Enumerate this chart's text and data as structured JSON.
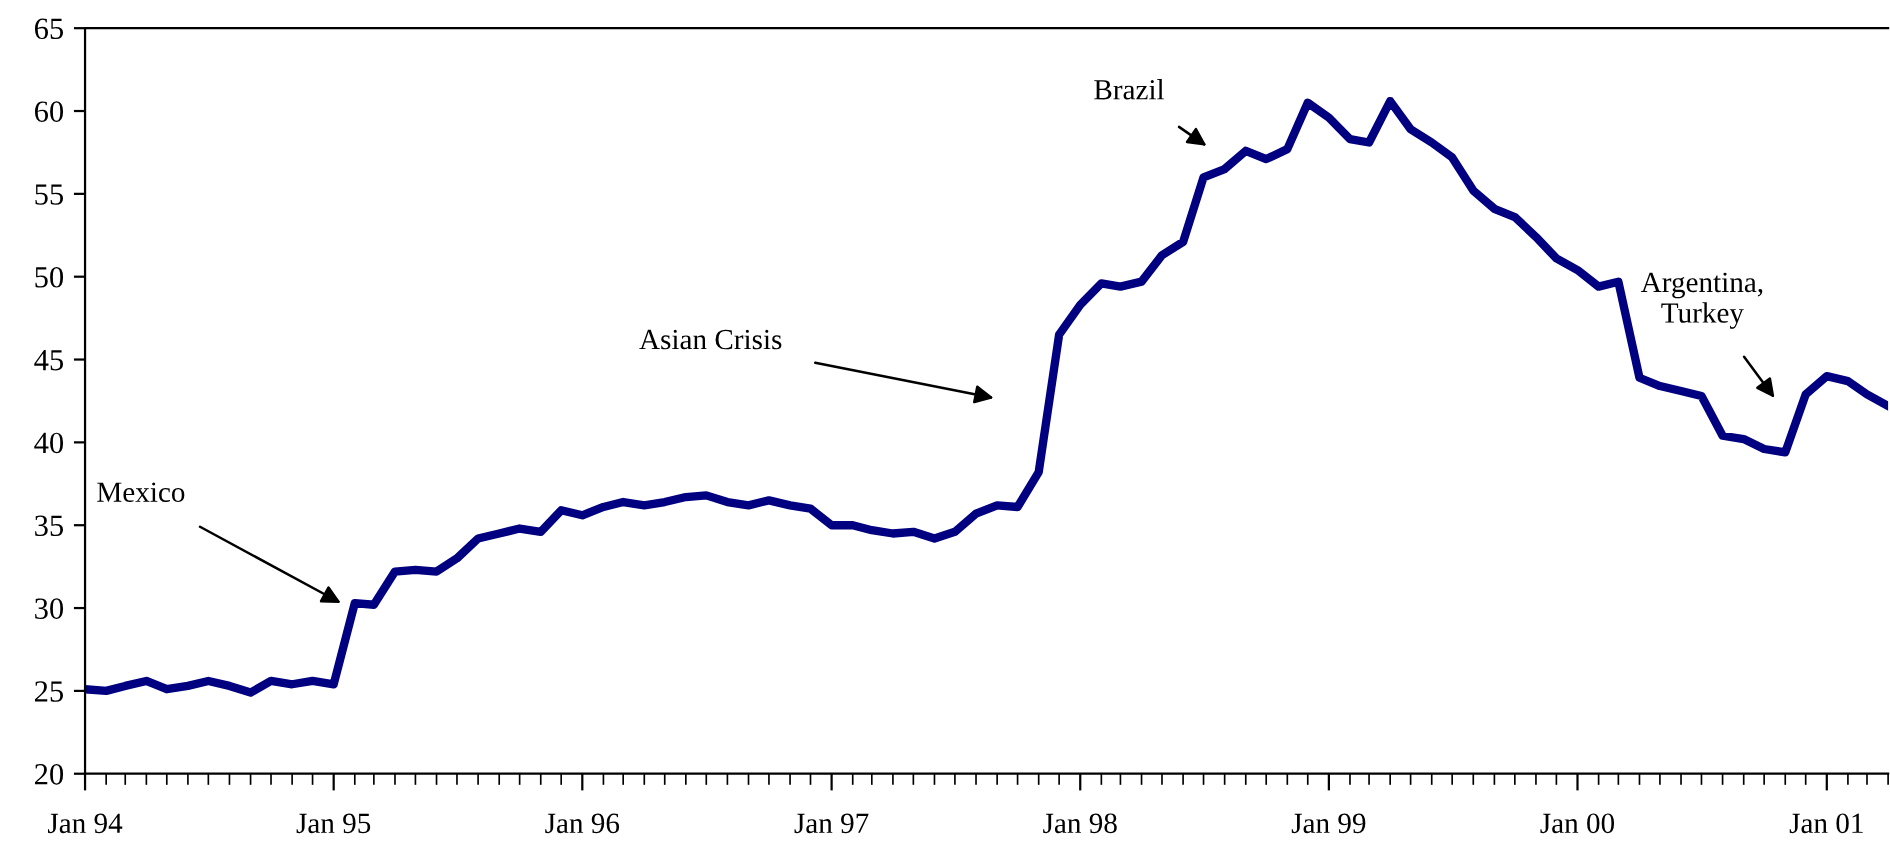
{
  "chart_data": {
    "type": "line",
    "x": [
      "1994-01",
      "1994-02",
      "1994-03",
      "1994-04",
      "1994-05",
      "1994-06",
      "1994-07",
      "1994-08",
      "1994-09",
      "1994-10",
      "1994-11",
      "1994-12",
      "1995-01",
      "1995-02",
      "1995-03",
      "1995-04",
      "1995-05",
      "1995-06",
      "1995-07",
      "1995-08",
      "1995-09",
      "1995-10",
      "1995-11",
      "1995-12",
      "1996-01",
      "1996-02",
      "1996-03",
      "1996-04",
      "1996-05",
      "1996-06",
      "1996-07",
      "1996-08",
      "1996-09",
      "1996-10",
      "1996-11",
      "1996-12",
      "1997-01",
      "1997-02",
      "1997-03",
      "1997-04",
      "1997-05",
      "1997-06",
      "1997-07",
      "1997-08",
      "1997-09",
      "1997-10",
      "1997-11",
      "1997-12",
      "1998-01",
      "1998-02",
      "1998-03",
      "1998-04",
      "1998-05",
      "1998-06",
      "1998-07",
      "1998-08",
      "1998-09",
      "1998-10",
      "1998-11",
      "1998-12",
      "1999-01",
      "1999-02",
      "1999-03",
      "1999-04",
      "1999-05",
      "1999-06",
      "1999-07",
      "1999-08",
      "1999-09",
      "1999-10",
      "1999-11",
      "1999-12",
      "2000-01",
      "2000-02",
      "2000-03",
      "2000-04",
      "2000-05",
      "2000-06",
      "2000-07",
      "2000-08",
      "2000-09",
      "2000-10",
      "2000-11",
      "2000-12",
      "2001-01",
      "2001-02",
      "2001-03",
      "2001-04"
    ],
    "series": [
      {
        "color": "#000080",
        "values": [
          25.1,
          25.0,
          25.3,
          25.6,
          25.1,
          25.3,
          25.6,
          25.3,
          24.9,
          25.6,
          25.4,
          25.6,
          25.4,
          30.3,
          30.2,
          32.2,
          32.3,
          32.2,
          33.0,
          34.2,
          34.5,
          34.8,
          34.6,
          35.9,
          35.6,
          36.1,
          36.4,
          36.2,
          36.4,
          36.7,
          36.8,
          36.4,
          36.2,
          36.5,
          36.2,
          36.0,
          35.0,
          35.0,
          34.7,
          34.5,
          34.6,
          34.2,
          34.6,
          35.7,
          36.2,
          36.1,
          38.2,
          46.5,
          48.3,
          49.6,
          49.4,
          49.7,
          51.3,
          52.1,
          56.0,
          56.5,
          57.6,
          57.1,
          57.7,
          60.5,
          59.6,
          58.3,
          58.1,
          60.6,
          58.9,
          58.1,
          57.2,
          55.2,
          54.1,
          53.6,
          52.4,
          51.1,
          50.4,
          49.4,
          49.7,
          43.9,
          43.4,
          43.1,
          42.8,
          40.4,
          40.2,
          39.6,
          39.4,
          42.9,
          44.0,
          43.7,
          42.9,
          42.2
        ]
      }
    ],
    "xlim": [
      "1994-01",
      "2001-04"
    ],
    "xticks": [
      {
        "value": "1994-01",
        "label": "Jan 94"
      },
      {
        "value": "1995-01",
        "label": "Jan 95"
      },
      {
        "value": "1996-01",
        "label": "Jan 96"
      },
      {
        "value": "1997-01",
        "label": "Jan 97"
      },
      {
        "value": "1998-01",
        "label": "Jan 98"
      },
      {
        "value": "1999-01",
        "label": "Jan 99"
      },
      {
        "value": "2000-01",
        "label": "Jan 00"
      },
      {
        "value": "2001-01",
        "label": "Jan 01"
      }
    ],
    "ylim": [
      20,
      65
    ],
    "yticks": [
      20,
      25,
      30,
      35,
      40,
      45,
      50,
      55,
      60,
      65
    ],
    "line_style": "solid",
    "marker": "none",
    "grid": false,
    "legend": false,
    "annotations": [
      {
        "text": "Mexico",
        "x": "1995-02",
        "y": 30.3
      },
      "Asian Crisis",
      "Brazil",
      "Argentina,\nTurkey"
    ]
  }
}
